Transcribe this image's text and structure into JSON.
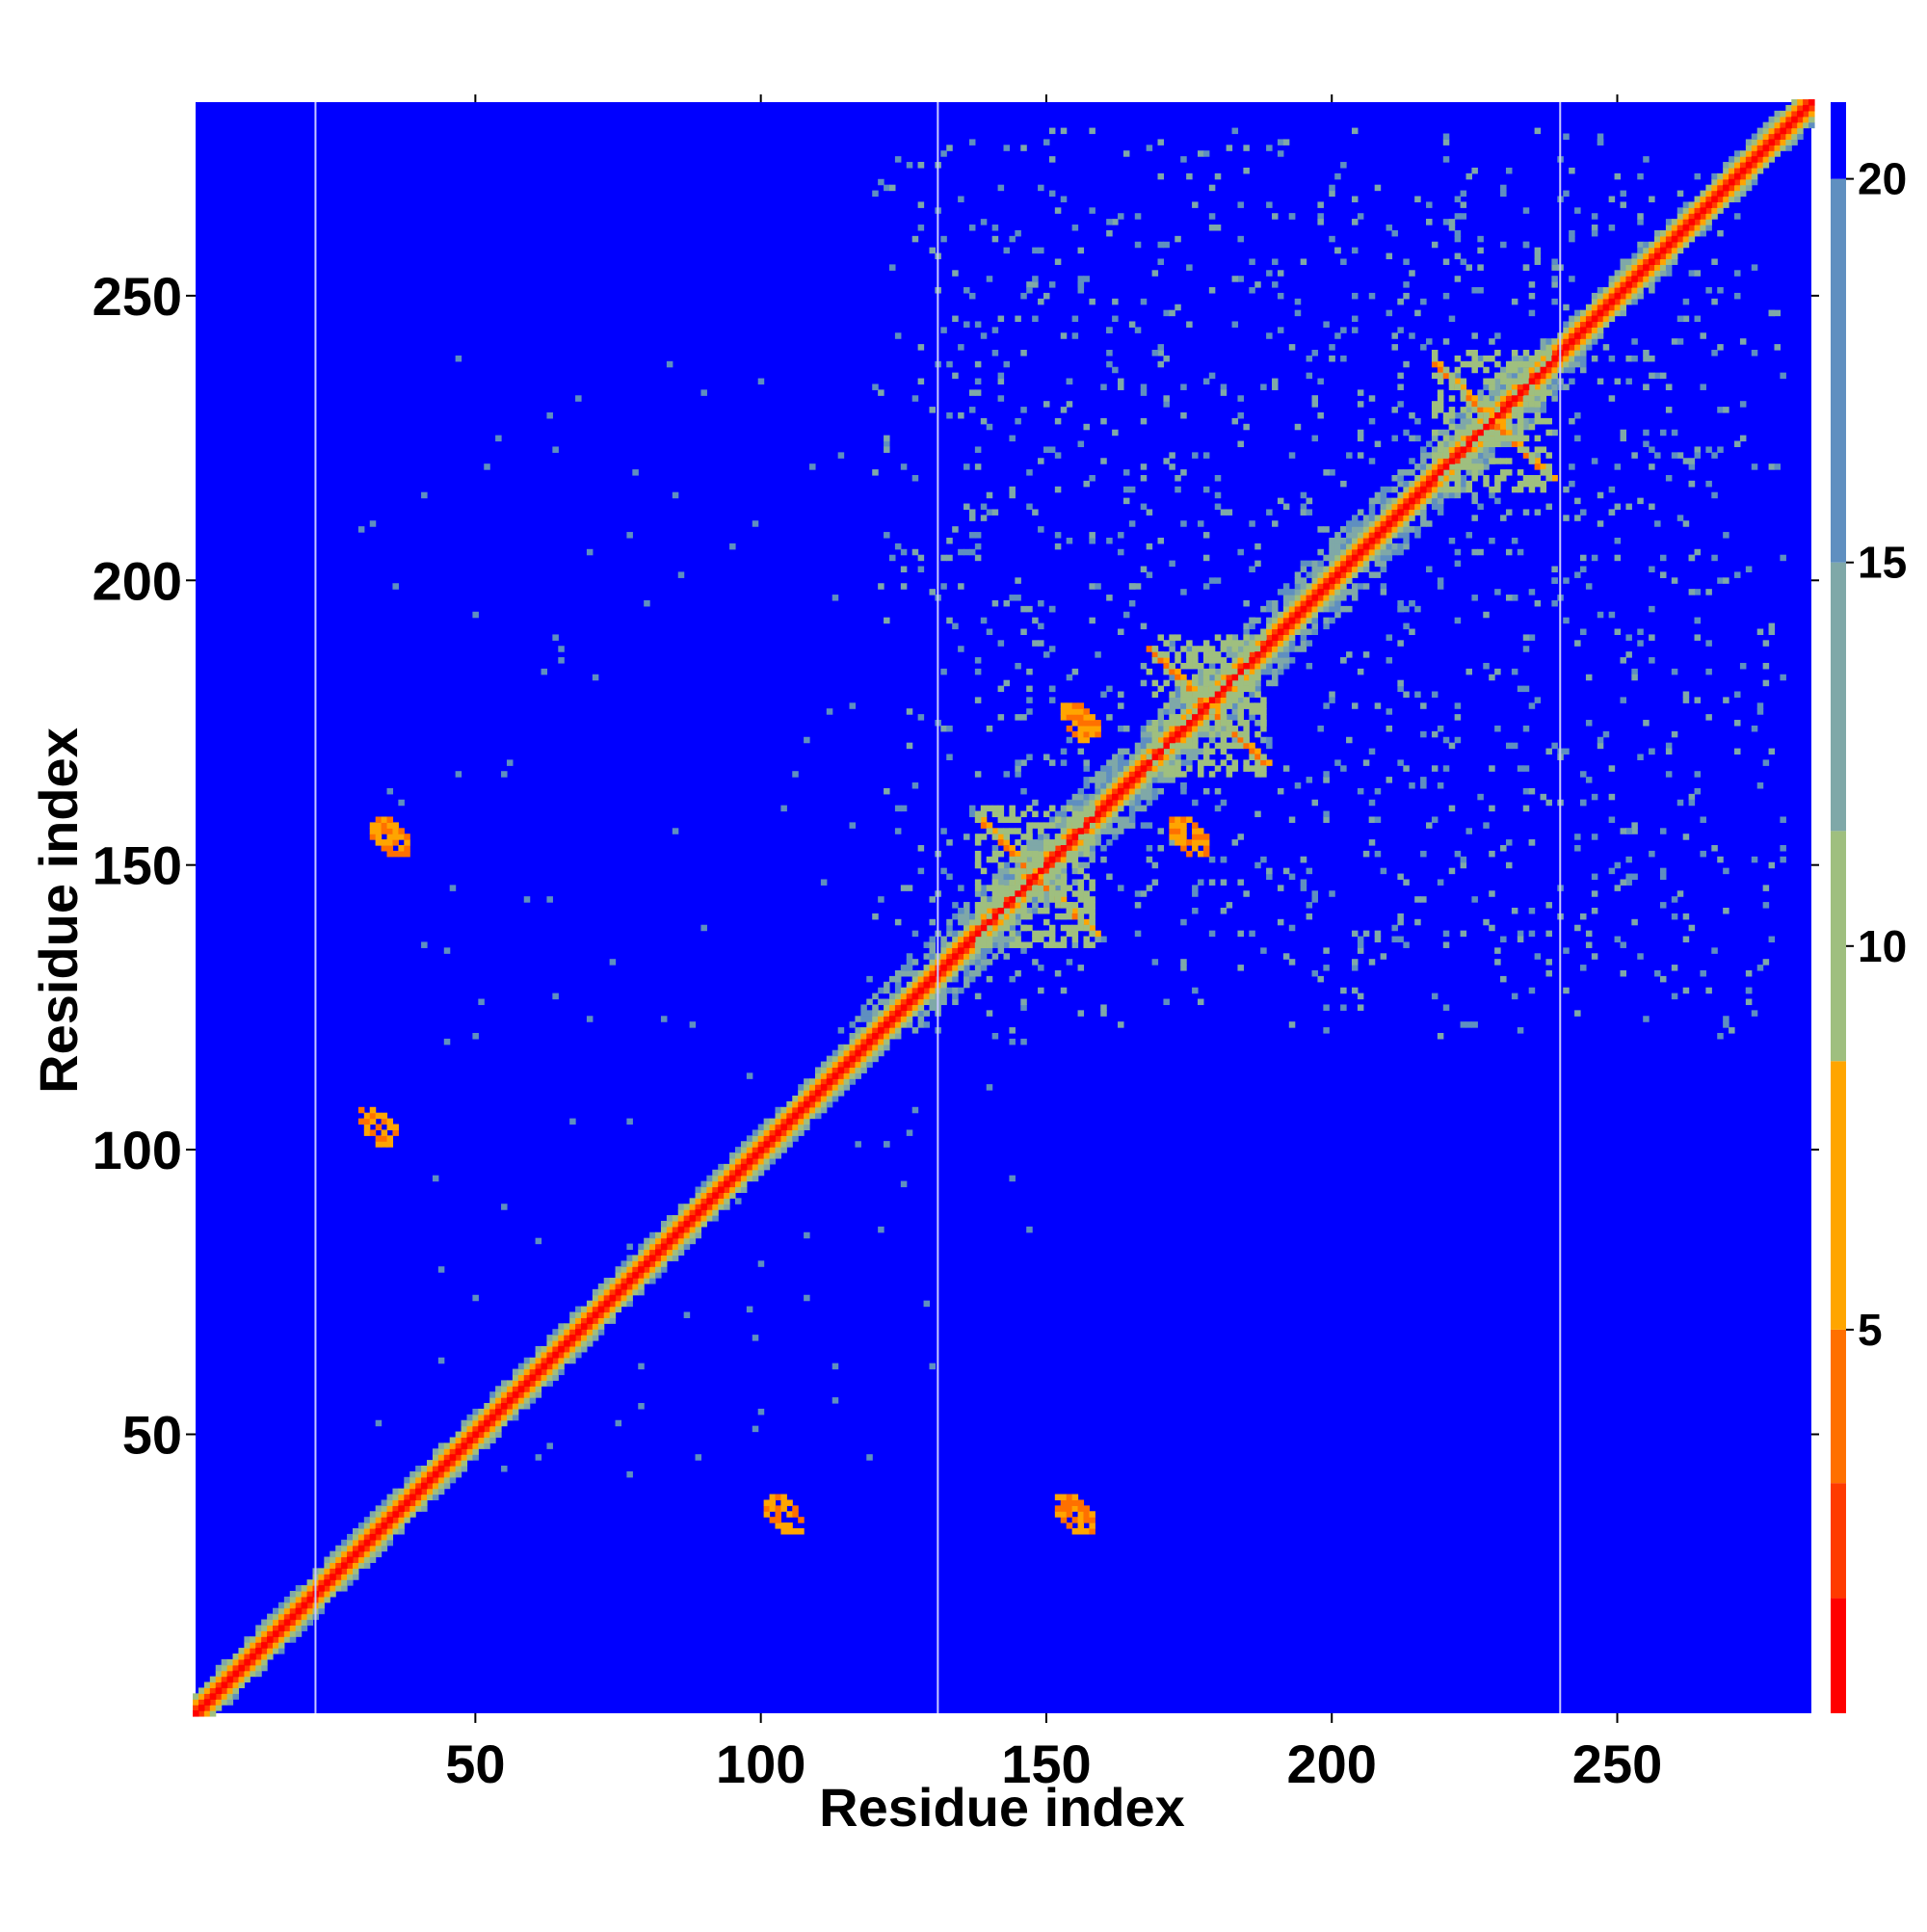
{
  "chart_data": {
    "type": "heatmap",
    "title": "",
    "xlabel": "Residue index",
    "ylabel": "Residue index",
    "xlim": [
      1,
      284
    ],
    "ylim": [
      1,
      284
    ],
    "xticks": [
      50,
      100,
      150,
      200,
      250
    ],
    "yticks": [
      50,
      100,
      150,
      200,
      250
    ],
    "x_tick_labels": [
      "50",
      "100",
      "150",
      "200",
      "250"
    ],
    "y_tick_labels": [
      "50",
      "100",
      "150",
      "200",
      "250"
    ],
    "colorbar": {
      "range": [
        0,
        21
      ],
      "ticks": [
        5,
        10,
        15,
        20
      ],
      "tick_labels": [
        "5",
        "10",
        "15",
        "20"
      ],
      "colors": [
        "#ff0000",
        "#ff3a00",
        "#ff7000",
        "#ffa500",
        "#9fbf7f",
        "#7fa8a8",
        "#5f8fc0",
        "#0000ff"
      ]
    },
    "background_color": "#0000ff",
    "divider_lines_x": [
      22,
      131,
      240
    ],
    "features": [
      {
        "kind": "diagonal",
        "from": 1,
        "to": 284
      },
      {
        "kind": "contact_patch",
        "x": 104,
        "y": 36,
        "value": 6
      },
      {
        "kind": "contact_patch",
        "x": 33,
        "y": 104,
        "value": 6
      },
      {
        "kind": "contact_patch",
        "x": 35,
        "y": 155,
        "value": 6
      },
      {
        "kind": "contact_patch",
        "x": 155,
        "y": 36,
        "value": 6
      },
      {
        "kind": "cross_pattern",
        "x": 148,
        "y": 148,
        "value": 6
      },
      {
        "kind": "cross_pattern",
        "x": 178,
        "y": 178,
        "value": 6
      },
      {
        "kind": "cross_pattern",
        "x": 228,
        "y": 228,
        "value": 6
      },
      {
        "kind": "contact_patch",
        "x": 156,
        "y": 175,
        "value": 6
      },
      {
        "kind": "contact_patch",
        "x": 175,
        "y": 155,
        "value": 6
      }
    ]
  }
}
